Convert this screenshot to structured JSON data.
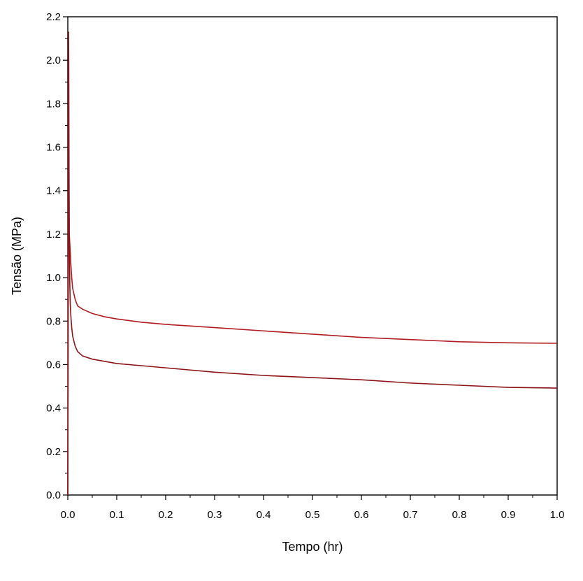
{
  "chart_data": {
    "type": "line",
    "title": "",
    "xlabel": "Tempo (hr)",
    "ylabel": "Tensão (MPa)",
    "xlim": [
      0.0,
      1.0
    ],
    "ylim": [
      0.0,
      2.2
    ],
    "x_ticks": [
      0.0,
      0.1,
      0.2,
      0.3,
      0.4,
      0.5,
      0.6,
      0.7,
      0.8,
      0.9,
      1.0
    ],
    "x_tick_labels": [
      "0.0",
      "0.1",
      "0.2",
      "0.3",
      "0.4",
      "0.5",
      "0.6",
      "0.7",
      "0.8",
      "0.9",
      "1.0"
    ],
    "y_ticks": [
      0.0,
      0.2,
      0.4,
      0.6,
      0.8,
      1.0,
      1.2,
      1.4,
      1.6,
      1.8,
      2.0,
      2.2
    ],
    "y_tick_labels": [
      "0.0",
      "0.2",
      "0.4",
      "0.6",
      "0.8",
      "1.0",
      "1.2",
      "1.4",
      "1.6",
      "1.8",
      "2.0",
      "2.2"
    ],
    "grid": false,
    "legend": "none",
    "series": [
      {
        "color": "#b01c22",
        "x": [
          0.0,
          0.0006,
          0.0012,
          0.0018,
          0.0022,
          0.0025,
          0.003,
          0.004,
          0.005,
          0.006,
          0.008,
          0.01,
          0.015,
          0.02,
          0.03,
          0.05,
          0.075,
          0.1,
          0.15,
          0.2,
          0.3,
          0.4,
          0.5,
          0.6,
          0.7,
          0.8,
          0.9,
          1.0
        ],
        "y": [
          0.0,
          0.5,
          1.3,
          1.62,
          1.55,
          1.38,
          1.2,
          1.16,
          1.12,
          1.07,
          1.0,
          0.95,
          0.9,
          0.87,
          0.855,
          0.835,
          0.82,
          0.81,
          0.795,
          0.785,
          0.77,
          0.755,
          0.74,
          0.725,
          0.715,
          0.705,
          0.7,
          0.698
        ]
      },
      {
        "color": "#8c1418",
        "x": [
          0.0,
          0.0005,
          0.001,
          0.0015,
          0.002,
          0.0025,
          0.003,
          0.004,
          0.005,
          0.006,
          0.008,
          0.01,
          0.015,
          0.02,
          0.03,
          0.05,
          0.075,
          0.1,
          0.15,
          0.2,
          0.3,
          0.4,
          0.5,
          0.6,
          0.7,
          0.8,
          0.9,
          1.0
        ],
        "y": [
          0.0,
          0.8,
          1.7,
          2.13,
          1.95,
          1.52,
          1.2,
          0.98,
          0.88,
          0.83,
          0.77,
          0.73,
          0.685,
          0.66,
          0.64,
          0.625,
          0.615,
          0.605,
          0.595,
          0.585,
          0.565,
          0.55,
          0.54,
          0.53,
          0.515,
          0.505,
          0.495,
          0.492
        ]
      }
    ]
  }
}
